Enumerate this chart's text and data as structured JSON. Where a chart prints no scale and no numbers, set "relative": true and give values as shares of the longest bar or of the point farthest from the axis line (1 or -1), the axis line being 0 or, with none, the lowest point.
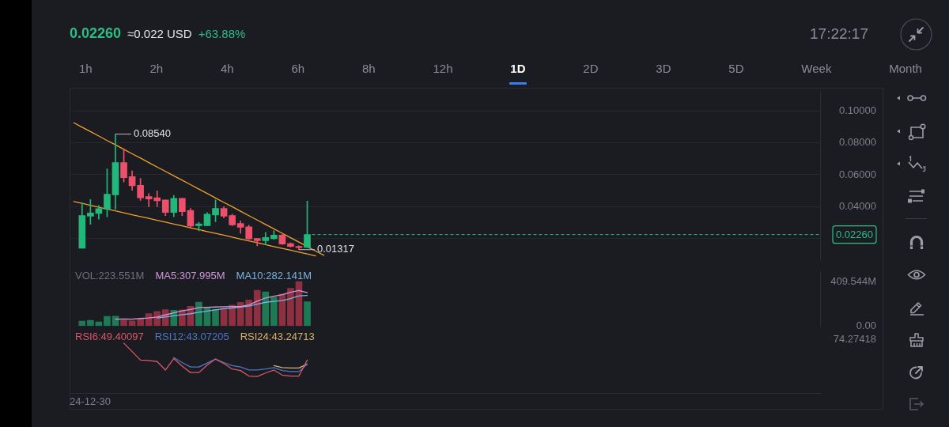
{
  "chart_data": [
    {
      "type": "candlestick",
      "categories": [
        null,
        null,
        null,
        null,
        null,
        null,
        null,
        null,
        null,
        null,
        null,
        null,
        null,
        null,
        null,
        null,
        null,
        null,
        null,
        null,
        null,
        null,
        null,
        null,
        null,
        null,
        null,
        null,
        null,
        null,
        null,
        null,
        null,
        null,
        null,
        null,
        null,
        null,
        null,
        null,
        null,
        null,
        null,
        null,
        null,
        null,
        null,
        null,
        null,
        null,
        null,
        null,
        null,
        null,
        null,
        null,
        null,
        null,
        null,
        null,
        null,
        null,
        null,
        null,
        null,
        null,
        null,
        null,
        null,
        null,
        null,
        null,
        null,
        null,
        null,
        null,
        null,
        null,
        null,
        null,
        null,
        null,
        null,
        null,
        null,
        null,
        null,
        null,
        null,
        null
      ],
      "ohlc": [
        null,
        [
          0.0141,
          0.0424,
          0.0141,
          0.0345
        ],
        [
          0.0341,
          0.0445,
          0.029,
          0.0361
        ],
        [
          0.0358,
          0.0408,
          0.0322,
          0.0388
        ],
        [
          0.0385,
          0.0637,
          0.0337,
          0.0479
        ],
        [
          0.0474,
          0.0854,
          0.0385,
          0.0676
        ],
        [
          0.0676,
          0.0763,
          0.0555,
          0.0582
        ],
        [
          0.0589,
          0.0624,
          0.0503,
          0.0531
        ],
        [
          0.0534,
          0.0577,
          0.044,
          0.0456
        ],
        [
          0.0463,
          0.0482,
          0.04,
          0.0448
        ],
        [
          0.0456,
          0.05,
          0.04,
          0.0437
        ],
        [
          0.0443,
          0.0443,
          0.0345,
          0.0364
        ],
        [
          0.0364,
          0.0471,
          0.0337,
          0.0452
        ],
        [
          0.0452,
          0.0452,
          0.0345,
          0.0369
        ],
        [
          0.0377,
          0.0389,
          0.0271,
          0.0279
        ],
        [
          0.0281,
          0.0303,
          0.0249,
          0.0293
        ],
        [
          0.0282,
          0.0364,
          0.0282,
          0.0353
        ],
        [
          0.0348,
          0.0443,
          0.0306,
          0.0389
        ],
        [
          0.0389,
          0.04,
          0.033,
          0.0341
        ],
        [
          0.0345,
          0.0353,
          0.0282,
          0.0287
        ],
        [
          0.0295,
          0.0311,
          0.0235,
          0.0271
        ],
        [
          0.0274,
          0.0285,
          0.0196,
          0.0199
        ],
        [
          0.0202,
          0.0202,
          0.0156,
          0.0188
        ],
        [
          0.0188,
          0.024,
          0.0161,
          0.0208
        ],
        [
          0.02,
          0.0251,
          0.0196,
          0.0222
        ],
        [
          0.0222,
          0.0227,
          0.0164,
          0.0167
        ],
        [
          0.017,
          0.0174,
          0.0148,
          0.0152
        ],
        [
          0.0152,
          0.0156,
          0.01317,
          0.0144
        ],
        [
          0.0145,
          0.0435,
          0.0145,
          0.0226
        ],
        null,
        null,
        null,
        null,
        null,
        null,
        null,
        null,
        null,
        null,
        null,
        null,
        null,
        null,
        null,
        null,
        null,
        null,
        null,
        null,
        null,
        null,
        null,
        null,
        null,
        null,
        null,
        null,
        null,
        null,
        null,
        null,
        null,
        null,
        null,
        null,
        null,
        null,
        null,
        null,
        null,
        null,
        null,
        null,
        null,
        null,
        null,
        null,
        null,
        null,
        null,
        null,
        null,
        null,
        null,
        null,
        null,
        null,
        null,
        null,
        null
      ],
      "colors": [
        null,
        "#22b87b",
        "#22b87b",
        "#22b87b",
        "#22b87b",
        "#22b87b",
        "#ee4f6a",
        "#ee4f6a",
        "#ee4f6a",
        "#ee4f6a",
        "#ee4f6a",
        "#ee4f6a",
        "#22b87b",
        "#ee4f6a",
        "#ee4f6a",
        "#22b87b",
        "#22b87b",
        "#22b87b",
        "#ee4f6a",
        "#ee4f6a",
        "#ee4f6a",
        "#ee4f6a",
        "#ee4f6a",
        "#22b87b",
        "#22b87b",
        "#ee4f6a",
        "#ee4f6a",
        "#ee4f6a",
        "#22b87b",
        null,
        null,
        null,
        null,
        null,
        null,
        null,
        null,
        null,
        null,
        null,
        null,
        null,
        null,
        null,
        null,
        null,
        null,
        null,
        null,
        null,
        null,
        null,
        null,
        null,
        null,
        null,
        null,
        null,
        null,
        null,
        null,
        null,
        null,
        null,
        null,
        null,
        null,
        null,
        null,
        null,
        null,
        null,
        null,
        null,
        null,
        null,
        null,
        null,
        null,
        null,
        null,
        null,
        null,
        null,
        null,
        null,
        null,
        null,
        null,
        null
      ],
      "value_labels": [
        null,
        null,
        null,
        null,
        null,
        "0.08540",
        null,
        null,
        null,
        null,
        null,
        null,
        null,
        null,
        null,
        null,
        null,
        null,
        null,
        null,
        null,
        null,
        null,
        null,
        null,
        null,
        null,
        "0.01317",
        null,
        null,
        null,
        null,
        null,
        null,
        null,
        null,
        null,
        null,
        null,
        null,
        null,
        null,
        null,
        null,
        null,
        null,
        null,
        null,
        null,
        null,
        null,
        null,
        null,
        null,
        null,
        null,
        null,
        null,
        null,
        null,
        null,
        null,
        null,
        null,
        null,
        null,
        null,
        null,
        null,
        null,
        null,
        null,
        null,
        null,
        null,
        null,
        null,
        null,
        null,
        null,
        null,
        null,
        null,
        null,
        null,
        null,
        null,
        null,
        null,
        null
      ],
      "series": [
        {
          "type": "line",
          "color": "#f0a030",
          "values": [
            0.0925,
            0.0897,
            0.087,
            0.0842,
            0.0814,
            0.0787,
            0.0759,
            0.0731,
            0.0704,
            0.0676,
            0.0648,
            0.0621,
            0.0593,
            0.0566,
            0.0538,
            0.051,
            0.0483,
            0.0455,
            0.0427,
            0.04,
            0.0372,
            0.0344,
            0.0317,
            0.0289,
            0.0262,
            0.0234,
            0.0206,
            0.0179,
            0.0151,
            0.0123,
            0.0096,
            null,
            null,
            null,
            null,
            null,
            null,
            null,
            null,
            null,
            null,
            null,
            null,
            null,
            null,
            null,
            null,
            null,
            null,
            null,
            null,
            null,
            null,
            null,
            null,
            null,
            null,
            null,
            null,
            null,
            null,
            null,
            null,
            null,
            null,
            null,
            null,
            null,
            null,
            null,
            null,
            null,
            null,
            null,
            null,
            null,
            null,
            null,
            null,
            null,
            null,
            null,
            null,
            null,
            null,
            null,
            null,
            null,
            null,
            null
          ]
        },
        {
          "type": "line",
          "color": "#f0a030",
          "values": [
            0.0432,
            0.0421,
            0.0409,
            0.0397,
            0.0385,
            0.0374,
            0.0362,
            0.035,
            0.0339,
            0.0327,
            0.0315,
            0.0304,
            0.0292,
            0.028,
            0.0268,
            0.0257,
            0.0245,
            0.0233,
            0.0222,
            0.021,
            0.0198,
            0.0186,
            0.0175,
            0.0163,
            0.0151,
            0.014,
            0.0128,
            0.0116,
            0.0105,
            0.0093,
            null,
            null,
            null,
            null,
            null,
            null,
            null,
            null,
            null,
            null,
            null,
            null,
            null,
            null,
            null,
            null,
            null,
            null,
            null,
            null,
            null,
            null,
            null,
            null,
            null,
            null,
            null,
            null,
            null,
            null,
            null,
            null,
            null,
            null,
            null,
            null,
            null,
            null,
            null,
            null,
            null,
            null,
            null,
            null,
            null,
            null,
            null,
            null,
            null,
            null,
            null,
            null,
            null,
            null,
            null,
            null,
            null,
            null,
            null,
            null
          ]
        }
      ],
      "ylim": [
        0.007,
        0.112
      ],
      "yticks": [
        {
          "value": 0.02,
          "label": null
        },
        {
          "value": 0.04,
          "label": "0.04000"
        },
        {
          "value": 0.06,
          "label": "0.06000"
        },
        {
          "value": 0.08,
          "label": "0.08000"
        },
        {
          "value": 0.1,
          "label": "0.10000"
        }
      ],
      "grid": "y",
      "tick_labels": "y",
      "ref_lines": [
        {
          "axis": "y",
          "value": 0.0226,
          "label": "0.02260",
          "color": "#2ebd85",
          "line_style": "dashed"
        }
      ],
      "annotations": [
        "0.02260",
        "≈0.022 USD",
        "+63.88%",
        "17:22:17",
        "1h",
        "2h",
        "4h",
        "6h",
        "8h",
        "12h",
        "1D",
        "2D",
        "3D",
        "5D",
        "Week",
        "Month"
      ]
    },
    {
      "type": "bar",
      "categories": [
        null,
        null,
        null,
        null,
        null,
        null,
        null,
        null,
        null,
        null,
        null,
        null,
        null,
        null,
        null,
        null,
        null,
        null,
        null,
        null,
        null,
        null,
        null,
        null,
        null,
        null,
        null,
        null,
        null,
        null,
        null,
        null,
        null,
        null,
        null,
        null,
        null,
        null,
        null,
        null,
        null,
        null,
        null,
        null,
        null,
        null,
        null,
        null,
        null,
        null,
        null,
        null,
        null,
        null,
        null,
        null,
        null,
        null,
        null,
        null,
        null,
        null,
        null,
        null,
        null,
        null,
        null,
        null,
        null,
        null,
        null,
        null,
        null,
        null,
        null,
        null,
        null,
        null,
        null,
        null,
        null,
        null,
        null,
        null,
        null,
        null,
        null,
        null,
        null,
        null
      ],
      "series": [
        {
          "values": [
            null,
            44,
            52,
            37,
            89,
            91,
            52,
            46,
            65,
            115,
            135,
            150,
            146,
            148,
            181,
            220,
            170,
            155,
            165,
            192,
            218,
            240,
            329,
            316,
            266,
            294,
            348,
            409.544,
            223.551,
            null,
            null,
            null,
            null,
            null,
            null,
            null,
            null,
            null,
            null,
            null,
            null,
            null,
            null,
            null,
            null,
            null,
            null,
            null,
            null,
            null,
            null,
            null,
            null,
            null,
            null,
            null,
            null,
            null,
            null,
            null,
            null,
            null,
            null,
            null,
            null,
            null,
            null,
            null,
            null,
            null,
            null,
            null,
            null,
            null,
            null,
            null,
            null,
            null,
            null,
            null,
            null,
            null,
            null,
            null,
            null,
            null,
            null,
            null,
            null,
            null
          ],
          "colors": [
            null,
            "#1d7a55",
            "#1d7a55",
            "#1d7a55",
            "#1d7a55",
            "#1d7a55",
            "#8e3042",
            "#8e3042",
            "#8e3042",
            "#8e3042",
            "#8e3042",
            "#8e3042",
            "#1d7a55",
            "#8e3042",
            "#8e3042",
            "#1d7a55",
            "#1d7a55",
            "#1d7a55",
            "#8e3042",
            "#8e3042",
            "#8e3042",
            "#8e3042",
            "#8e3042",
            "#1d7a55",
            "#1d7a55",
            "#8e3042",
            "#8e3042",
            "#8e3042",
            "#1d7a55",
            null,
            null,
            null,
            null,
            null,
            null,
            null,
            null,
            null,
            null,
            null,
            null,
            null,
            null,
            null,
            null,
            null,
            null,
            null,
            null,
            null,
            null,
            null,
            null,
            null,
            null,
            null,
            null,
            null,
            null,
            null,
            null,
            null,
            null,
            null,
            null,
            null,
            null,
            null,
            null,
            null,
            null,
            null,
            null,
            null,
            null,
            null,
            null,
            null,
            null,
            null,
            null,
            null,
            null,
            null,
            null,
            null,
            null,
            null,
            null,
            null
          ]
        },
        {
          "type": "line",
          "name": "MA5:307.995M",
          "color": "#d096d8",
          "values": [
            null,
            null,
            null,
            null,
            null,
            63,
            64,
            63,
            69,
            74,
            83,
            102,
            122,
            139,
            152,
            169,
            173,
            175,
            178,
            180,
            180,
            194,
            229,
            259,
            274,
            289,
            311,
            327,
            307.995,
            null,
            null,
            null,
            null,
            null,
            null,
            null,
            null,
            null,
            null,
            null,
            null,
            null,
            null,
            null,
            null,
            null,
            null,
            null,
            null,
            null,
            null,
            null,
            null,
            null,
            null,
            null,
            null,
            null,
            null,
            null,
            null,
            null,
            null,
            null,
            null,
            null,
            null,
            null,
            null,
            null,
            null,
            null,
            null,
            null,
            null,
            null,
            null,
            null,
            null,
            null,
            null,
            null,
            null,
            null,
            null,
            null,
            null,
            null,
            null,
            null
          ]
        },
        {
          "type": "line",
          "name": "MA10:282.141M",
          "color": "#7ab3e0",
          "values": [
            null,
            null,
            null,
            null,
            null,
            null,
            null,
            null,
            null,
            null,
            73,
            83,
            93,
            104,
            113,
            126,
            138,
            149,
            159,
            166,
            175,
            184,
            202,
            219,
            227,
            235,
            252,
            278,
            282.141,
            null,
            null,
            null,
            null,
            null,
            null,
            null,
            null,
            null,
            null,
            null,
            null,
            null,
            null,
            null,
            null,
            null,
            null,
            null,
            null,
            null,
            null,
            null,
            null,
            null,
            null,
            null,
            null,
            null,
            null,
            null,
            null,
            null,
            null,
            null,
            null,
            null,
            null,
            null,
            null,
            null,
            null,
            null,
            null,
            null,
            null,
            null,
            null,
            null,
            null,
            null,
            null,
            null,
            null,
            null,
            null,
            null,
            null,
            null,
            null,
            null
          ]
        }
      ],
      "ylim": [
        0,
        500
      ],
      "yticks": [
        {
          "value": 0,
          "label": "0.00"
        },
        {
          "value": 409.544,
          "label": "409.544M"
        }
      ],
      "tick_labels": "y",
      "annotations": [
        "VOL:223.551M"
      ]
    },
    {
      "type": "line",
      "relative": true,
      "categories": [
        null,
        null,
        null,
        null,
        null,
        null,
        null,
        null,
        null,
        null,
        null,
        null,
        null,
        null,
        null,
        null,
        null,
        null,
        null,
        null,
        null,
        null,
        null,
        null,
        null,
        null,
        null,
        null,
        null,
        null,
        null,
        null,
        null,
        null,
        null,
        null,
        null,
        null,
        null,
        null,
        null,
        null,
        null,
        null,
        null,
        null,
        null,
        null,
        null,
        null,
        null,
        null,
        null,
        null,
        null,
        null,
        null,
        null,
        null,
        null,
        null,
        null,
        null,
        null,
        null,
        null,
        null,
        null,
        null,
        null,
        null,
        null,
        null,
        null,
        null,
        null,
        null,
        null,
        null,
        null,
        null,
        null,
        null,
        null,
        null,
        null,
        null,
        null,
        null,
        null
      ],
      "series": [
        {
          "name": "RSI6:49.40097",
          "color": "#d9566a",
          "values": [
            null,
            null,
            null,
            null,
            null,
            null,
            1.0,
            0.83,
            0.66,
            0.65,
            0.63,
            0.46,
            0.69,
            0.54,
            0.41,
            0.41,
            0.56,
            0.68,
            0.59,
            0.48,
            0.45,
            0.34,
            0.33,
            0.4,
            0.46,
            0.36,
            0.34,
            0.34,
            0.66,
            null,
            null,
            null,
            null,
            null,
            null,
            null,
            null,
            null,
            null,
            null,
            null,
            null,
            null,
            null,
            null,
            null,
            null,
            null,
            null,
            null,
            null,
            null,
            null,
            null,
            null,
            null,
            null,
            null,
            null,
            null,
            null,
            null,
            null,
            null,
            null,
            null,
            null,
            null,
            null,
            null,
            null,
            null,
            null,
            null,
            null,
            null,
            null,
            null,
            null,
            null,
            null,
            null,
            null,
            null,
            null,
            null,
            null,
            null,
            null,
            null
          ]
        },
        {
          "name": "RSI12:43.07205",
          "color": "#4a77c9",
          "values": [
            null,
            null,
            null,
            null,
            null,
            null,
            null,
            null,
            null,
            null,
            null,
            null,
            0.71,
            0.61,
            0.52,
            0.52,
            0.6,
            0.68,
            0.61,
            0.55,
            0.52,
            0.46,
            0.46,
            0.48,
            0.51,
            0.45,
            0.43,
            0.43,
            0.58,
            null,
            null,
            null,
            null,
            null,
            null,
            null,
            null,
            null,
            null,
            null,
            null,
            null,
            null,
            null,
            null,
            null,
            null,
            null,
            null,
            null,
            null,
            null,
            null,
            null,
            null,
            null,
            null,
            null,
            null,
            null,
            null,
            null,
            null,
            null,
            null,
            null,
            null,
            null,
            null,
            null,
            null,
            null,
            null,
            null,
            null,
            null,
            null,
            null,
            null,
            null,
            null,
            null,
            null,
            null,
            null,
            null,
            null,
            null,
            null,
            null
          ]
        },
        {
          "name": "RSI24:43.24713",
          "color": "#d6b26a",
          "values": [
            null,
            null,
            null,
            null,
            null,
            null,
            null,
            null,
            null,
            null,
            null,
            null,
            null,
            null,
            null,
            null,
            null,
            null,
            null,
            null,
            null,
            null,
            null,
            null,
            0.55,
            0.51,
            0.5,
            0.5,
            0.58,
            null,
            null,
            null,
            null,
            null,
            null,
            null,
            null,
            null,
            null,
            null,
            null,
            null,
            null,
            null,
            null,
            null,
            null,
            null,
            null,
            null,
            null,
            null,
            null,
            null,
            null,
            null,
            null,
            null,
            null,
            null,
            null,
            null,
            null,
            null,
            null,
            null,
            null,
            null,
            null,
            null,
            null,
            null,
            null,
            null,
            null,
            null,
            null,
            null,
            null,
            null,
            null,
            null,
            null,
            null,
            null,
            null,
            null,
            null,
            null,
            null
          ]
        }
      ],
      "tick_labels": false,
      "annotations": [
        "74.27418",
        "24-12-30"
      ]
    }
  ]
}
